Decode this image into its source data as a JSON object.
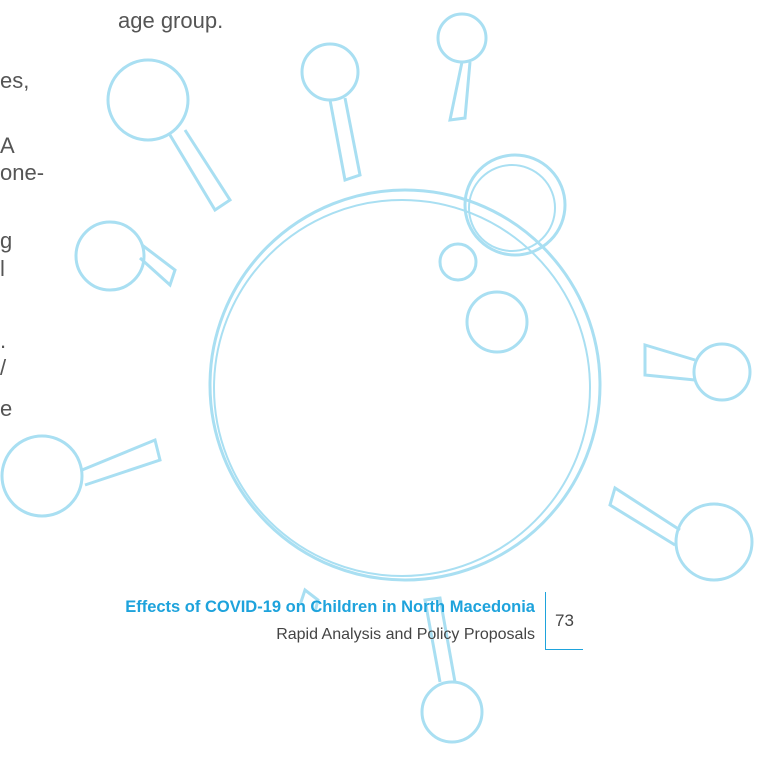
{
  "body": {
    "top_line": "age group.",
    "left_fragments": [
      "es,",
      "A",
      "one-",
      "g",
      "l",
      ".",
      "/",
      "e"
    ]
  },
  "footer": {
    "title": "Effects of COVID-19 on Children in North Macedonia",
    "subtitle": "Rapid Analysis and Policy Proposals",
    "page_number": "73"
  }
}
